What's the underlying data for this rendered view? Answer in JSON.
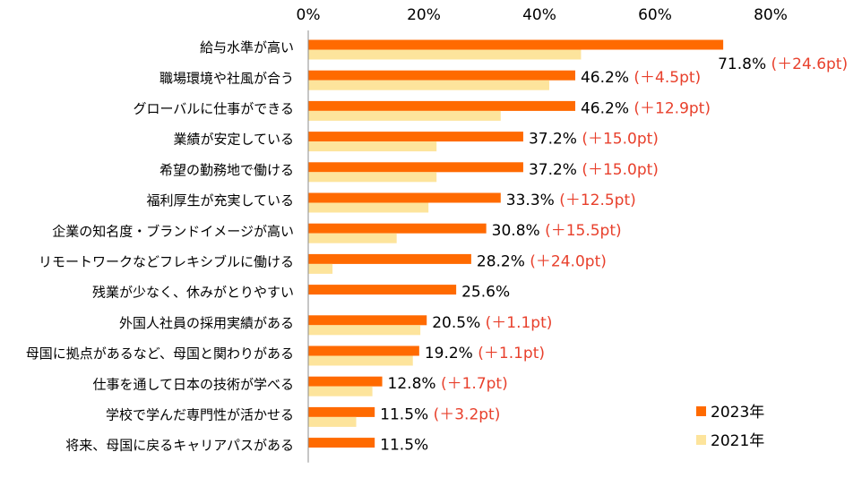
{
  "chart_data": {
    "type": "bar",
    "orientation": "horizontal",
    "title": "",
    "xlabel": "",
    "ylabel": "",
    "xlim": [
      0,
      80
    ],
    "x_ticks": [
      "0%",
      "20%",
      "40%",
      "60%",
      "80%"
    ],
    "grid": false,
    "legend_position": "bottom-right",
    "categories": [
      "給与水準が高い",
      "職場環境や社風が合う",
      "グローバルに仕事ができる",
      "業績が安定している",
      "希望の勤務地で働ける",
      "福利厚生が充実している",
      "企業の知名度・ブランドイメージが高い",
      "リモートワークなどフレキシブルに働ける",
      "残業が少なく、休みがとりやすい",
      "外国人社員の採用実績がある",
      "母国に拠点があるなど、母国と関わりがある",
      "仕事を通して日本の技術が学べる",
      "学校で学んだ専門性が活かせる",
      "将来、母国に戻るキャリアパスがある"
    ],
    "series": [
      {
        "name": "2023年",
        "color": "#ff6a00",
        "values": [
          71.8,
          46.2,
          46.2,
          37.2,
          37.2,
          33.3,
          30.8,
          28.2,
          25.6,
          20.5,
          19.2,
          12.8,
          11.5,
          11.5
        ]
      },
      {
        "name": "2021年",
        "color": "#fde49c",
        "values": [
          47.2,
          41.7,
          33.3,
          22.2,
          22.2,
          20.8,
          15.3,
          4.2,
          null,
          19.4,
          18.1,
          11.1,
          8.3,
          null
        ]
      }
    ],
    "value_labels": [
      "71.8%",
      "46.2%",
      "46.2%",
      "37.2%",
      "37.2%",
      "33.3%",
      "30.8%",
      "28.2%",
      "25.6%",
      "20.5%",
      "19.2%",
      "12.8%",
      "11.5%",
      "11.5%"
    ],
    "diff_labels": [
      "(＋24.6pt)",
      "(＋4.5pt)",
      "(＋12.9pt)",
      "(＋15.0pt)",
      "(＋15.0pt)",
      "(＋12.5pt)",
      "(＋15.5pt)",
      "(＋24.0pt)",
      "",
      "(＋1.1pt)",
      "(＋1.1pt)",
      "(＋1.7pt)",
      "(＋3.2pt)",
      ""
    ],
    "diff_color": "#e8402c"
  }
}
